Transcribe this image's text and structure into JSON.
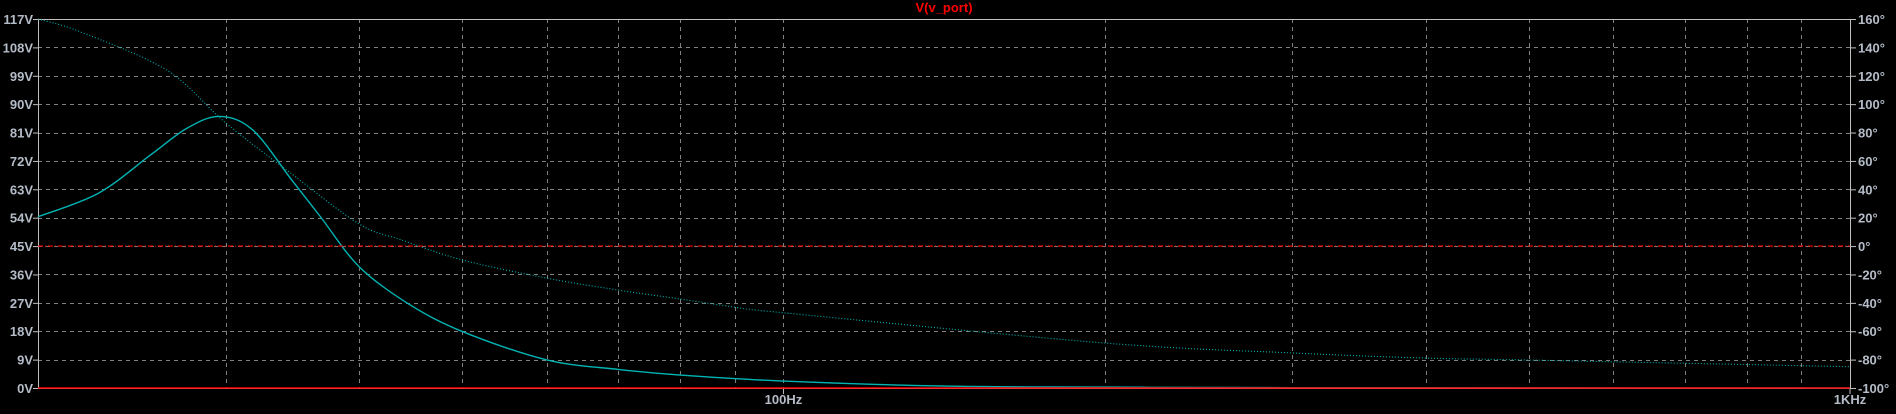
{
  "chart_data": {
    "type": "line",
    "title": "V(v_port)",
    "x_scale": "log",
    "xlim": [
      20,
      1000
    ],
    "x_tick_labels": [
      {
        "value": 100,
        "label": "100Hz"
      },
      {
        "value": 1000,
        "label": "1KHz"
      }
    ],
    "x_grid": [
      30,
      40,
      50,
      60,
      70,
      80,
      90,
      100,
      200,
      300,
      400,
      500,
      600,
      700,
      800,
      900
    ],
    "left_axis": {
      "unit": "V",
      "ylim": [
        0,
        117
      ],
      "ticks": [
        "117V",
        "108V",
        "99V",
        "90V",
        "81V",
        "72V",
        "63V",
        "54V",
        "45V",
        "36V",
        "27V",
        "18V",
        "9V",
        "0V"
      ],
      "tick_values": [
        117,
        108,
        99,
        90,
        81,
        72,
        63,
        54,
        45,
        36,
        27,
        18,
        9,
        0
      ]
    },
    "right_axis": {
      "unit": "°",
      "ylim": [
        -100,
        160
      ],
      "ticks": [
        "160°",
        "140°",
        "120°",
        "100°",
        "80°",
        "60°",
        "40°",
        "20°",
        "0°",
        "-20°",
        "-40°",
        "-60°",
        "-80°",
        "-100°"
      ],
      "tick_values": [
        160,
        140,
        120,
        100,
        80,
        60,
        40,
        20,
        0,
        -20,
        -40,
        -60,
        -80,
        -100
      ]
    },
    "grid": true,
    "series": [
      {
        "axis": "left",
        "style": "solid",
        "color": "#00b4b4",
        "x": [
          20,
          22.8,
          25.5,
          27.6,
          29.6,
          31.8,
          34.6,
          36.8,
          40,
          44.4,
          50,
          60,
          70,
          80,
          100,
          142,
          200,
          300,
          1000
        ],
        "y": [
          54.3,
          61.8,
          73.9,
          82.4,
          86.1,
          81.8,
          65.9,
          54.3,
          38.5,
          26.9,
          17.9,
          8.9,
          5.9,
          4.1,
          2.2,
          0.6,
          0.3,
          0.1,
          0
        ]
      },
      {
        "axis": "right",
        "style": "dotted",
        "color": "#00b4b4",
        "x": [
          20,
          21.9,
          26.4,
          30,
          34.5,
          40,
          43.7,
          50,
          60,
          70,
          80,
          90,
          100,
          200,
          300,
          400,
          500,
          1000
        ],
        "y": [
          160,
          151,
          124,
          86.7,
          51.5,
          15.6,
          4.7,
          -9.8,
          -22.6,
          -31,
          -37.3,
          -43,
          -47,
          -68.3,
          -75.3,
          -78.9,
          -80.3,
          -85
        ]
      },
      {
        "axis": "left",
        "style": "solid",
        "color": "#ff0000",
        "x": [
          20,
          1000
        ],
        "y": [
          0,
          0
        ]
      },
      {
        "axis": "right",
        "style": "dashdot",
        "color": "#ff0000",
        "x": [
          20,
          1000
        ],
        "y": [
          0,
          0
        ]
      }
    ],
    "colors": {
      "background": "#000000",
      "frame": "#c0c0c0",
      "grid": "#808080",
      "labels": "#b4bcc8",
      "title": "#ff0000"
    }
  }
}
